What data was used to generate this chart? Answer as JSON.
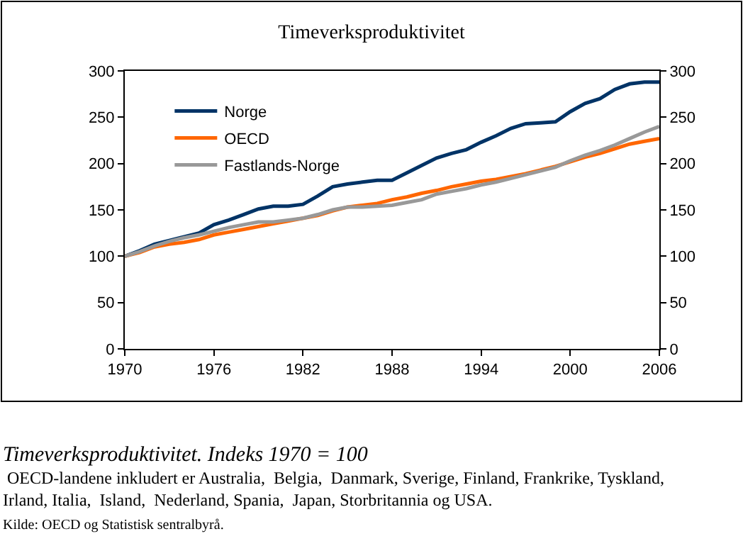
{
  "chart_data": {
    "type": "line",
    "title": "Timeverksproduktivitet",
    "x": [
      1970,
      1971,
      1972,
      1973,
      1974,
      1975,
      1976,
      1977,
      1978,
      1979,
      1980,
      1981,
      1982,
      1983,
      1984,
      1985,
      1986,
      1987,
      1988,
      1989,
      1990,
      1991,
      1992,
      1993,
      1994,
      1995,
      1996,
      1997,
      1998,
      1999,
      2000,
      2001,
      2002,
      2003,
      2004,
      2005,
      2006
    ],
    "series": [
      {
        "name": "Norge",
        "color": "#003366",
        "values": [
          100,
          106,
          113,
          117,
          121,
          125,
          134,
          139,
          145,
          151,
          154,
          154,
          156,
          165,
          175,
          178,
          180,
          182,
          182,
          190,
          198,
          206,
          211,
          215,
          223,
          230,
          238,
          243,
          244,
          245,
          256,
          265,
          270,
          280,
          286,
          288,
          288
        ]
      },
      {
        "name": "OECD",
        "color": "#ff6600",
        "values": [
          100,
          104,
          110,
          113,
          115,
          118,
          123,
          126,
          129,
          132,
          135,
          138,
          141,
          144,
          149,
          153,
          155,
          157,
          161,
          164,
          168,
          171,
          175,
          178,
          181,
          183,
          186,
          189,
          193,
          197,
          202,
          207,
          211,
          216,
          221,
          224,
          227
        ]
      },
      {
        "name": "Fastlands-Norge",
        "color": "#999999",
        "values": [
          100,
          105,
          111,
          116,
          120,
          123,
          127,
          131,
          134,
          137,
          137,
          139,
          141,
          145,
          150,
          153,
          153,
          154,
          155,
          158,
          161,
          167,
          170,
          173,
          177,
          180,
          184,
          188,
          192,
          196,
          203,
          209,
          214,
          220,
          227,
          234,
          240
        ]
      }
    ],
    "xlim": [
      1970,
      2006
    ],
    "xticks": [
      1970,
      1976,
      1982,
      1988,
      1994,
      2000,
      2006
    ],
    "ylim": [
      0,
      300
    ],
    "yticks": [
      0,
      50,
      100,
      150,
      200,
      250,
      300
    ],
    "y2lim": [
      0,
      300
    ],
    "y2ticks": [
      0,
      50,
      100,
      150,
      200,
      250,
      300
    ],
    "legend": "top left",
    "marker": "none",
    "line_style": "solid",
    "annotations": [
      "Timeverksproduktivitet. Indeks 1970 = 100",
      " OECD-landene inkludert er Australia,  Belgia,  Danmark, Sverige, Finland, Frankrike, Tyskland,\nIrland, Italia,  Island,  Nederland, Spania,  Japan, Storbritannia og USA.",
      "Kilde: OECD og Statistisk sentralbyrå."
    ]
  }
}
